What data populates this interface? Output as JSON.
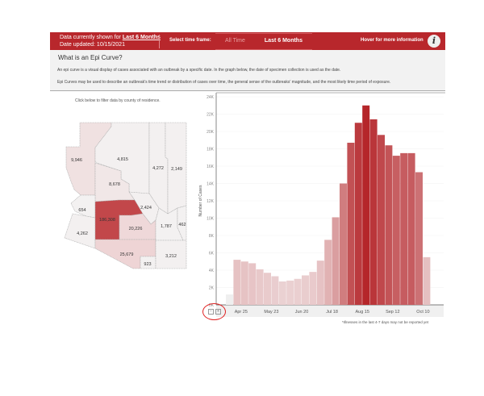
{
  "header": {
    "shown_prefix": "Data currently shown for ",
    "shown_value": "Last 6 Months",
    "date_updated": "Date updated: 10/15/2021",
    "select_label": "Select time frame:",
    "tabs": [
      {
        "label": "All Time",
        "active": false
      },
      {
        "label": "Last 6 Months",
        "active": true
      }
    ],
    "hover_info": "Hover for more information",
    "info_icon": "i"
  },
  "intro": {
    "title": "What is an Epi Curve?",
    "p1": "An epi curve is a visual display of cases associated with an outbreak by a specific date. In the graph below, the date of specimen collection is used as the date.",
    "p2": "Epi Curves may be used to describe an outbreak's time trend or distribution of cases over time, the general sense of the outbreaks' magnitude, and the most likely time period of exposure."
  },
  "map": {
    "instruction": "Click below to filter data by county of residence.",
    "counties": [
      {
        "value": "9,946",
        "color": "#f0e1e1"
      },
      {
        "value": "4,815",
        "color": "#f3f0f0"
      },
      {
        "value": "4,272",
        "color": "#f3f0f0"
      },
      {
        "value": "2,149",
        "color": "#f3f0f0"
      },
      {
        "value": "8,678",
        "color": "#f1e7e7"
      },
      {
        "value": "654",
        "color": "#f3f1f1"
      },
      {
        "value": "4,262",
        "color": "#f3f0f0"
      },
      {
        "value": "186,308",
        "color": "#c2474a"
      },
      {
        "value": "2,424",
        "color": "#f3f0f0"
      },
      {
        "value": "20,226",
        "color": "#efd8d9"
      },
      {
        "value": "1,787",
        "color": "#f3f1f1"
      },
      {
        "value": "462",
        "color": "#f3f1f1"
      },
      {
        "value": "25,679",
        "color": "#eed4d5"
      },
      {
        "value": "923",
        "color": "#f3f1f1"
      },
      {
        "value": "3,212",
        "color": "#f3f0f0"
      }
    ]
  },
  "chart_data": {
    "type": "bar",
    "ylabel": "Number of Cases",
    "ylim": [
      0,
      24000
    ],
    "yticks": [
      "0K",
      "2K",
      "4K",
      "6K",
      "8K",
      "10K",
      "12K",
      "14K",
      "16K",
      "18K",
      "20K",
      "22K",
      "24K"
    ],
    "x_tick_labels": [
      "Apr 25",
      "May 23",
      "Jun 20",
      "Jul 18",
      "Aug 15",
      "Sep 12",
      "Oct 10"
    ],
    "categories": [
      "Apr 11",
      "Apr 18",
      "Apr 25",
      "May 2",
      "May 9",
      "May 16",
      "May 23",
      "May 30",
      "Jun 6",
      "Jun 13",
      "Jun 20",
      "Jun 27",
      "Jul 4",
      "Jul 11",
      "Jul 18",
      "Jul 25",
      "Aug 1",
      "Aug 8",
      "Aug 15",
      "Aug 22",
      "Aug 29",
      "Sep 5",
      "Sep 12",
      "Sep 19",
      "Sep 26",
      "Oct 3",
      "Oct 10"
    ],
    "values": [
      1200,
      5200,
      5000,
      4800,
      4100,
      3700,
      3300,
      2700,
      2800,
      3000,
      3400,
      3800,
      5100,
      7500,
      10100,
      14000,
      18700,
      21000,
      23000,
      21400,
      19600,
      18400,
      17200,
      17500,
      17500,
      15300,
      5500
    ],
    "grid": true
  },
  "footnote": "*Illnesses in the last 4-7 days may not be reported yet"
}
